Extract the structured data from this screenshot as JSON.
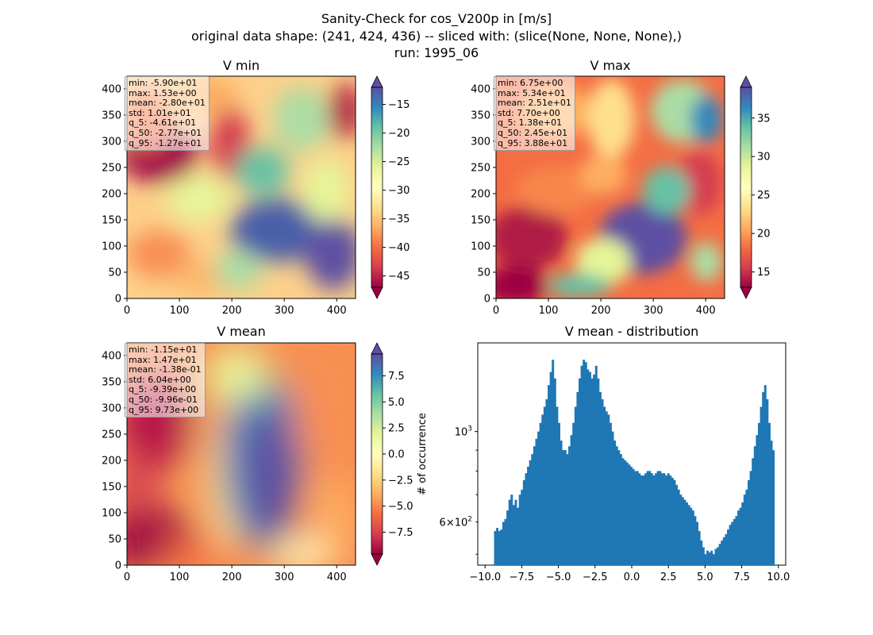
{
  "suptitle": {
    "line1": "Sanity-Check for cos_V200p in [m/s]",
    "line2": "original data shape: (241, 424, 436) -- sliced with: (slice(None, None, None),)",
    "line3": "run: 1995_06"
  },
  "colors": {
    "hist_bar": "#1f77b4",
    "colormap": "Spectral"
  },
  "chart_data": [
    {
      "type": "heatmap",
      "title": "V min",
      "xlim": [
        0,
        436
      ],
      "ylim": [
        0,
        424
      ],
      "xticks": [
        "0",
        "100",
        "200",
        "300",
        "400"
      ],
      "yticks": [
        "0",
        "50",
        "100",
        "150",
        "200",
        "250",
        "300",
        "350",
        "400"
      ],
      "clim": [
        -47,
        -12
      ],
      "colorbar_ticks": [
        "−15",
        "−20",
        "−25",
        "−30",
        "−35",
        "−40",
        "−45"
      ],
      "colorbar_tick_values": [
        -15,
        -20,
        -25,
        -30,
        -35,
        -40,
        -45
      ],
      "colorbar_extend": "both",
      "stats": [
        "min: -5.90e+01",
        "max: 1.53e+00",
        "mean: -2.80e+01",
        "std: 1.01e+01",
        "q_5: -4.61e+01",
        "q_50: -2.77e+01",
        "q_95: -1.27e+01"
      ]
    },
    {
      "type": "heatmap",
      "title": "V max",
      "xlim": [
        0,
        436
      ],
      "ylim": [
        0,
        424
      ],
      "xticks": [
        "0",
        "100",
        "200",
        "300",
        "400"
      ],
      "yticks": [
        "0",
        "50",
        "100",
        "150",
        "200",
        "250",
        "300",
        "350",
        "400"
      ],
      "clim": [
        13,
        39
      ],
      "colorbar_ticks": [
        "35",
        "30",
        "25",
        "20",
        "15"
      ],
      "colorbar_tick_values": [
        35,
        30,
        25,
        20,
        15
      ],
      "colorbar_extend": "both",
      "stats": [
        "min: 6.75e+00",
        "max: 5.34e+01",
        "mean: 2.51e+01",
        "std: 7.70e+00",
        "q_5: 1.38e+01",
        "q_50: 2.45e+01",
        "q_95: 3.88e+01"
      ]
    },
    {
      "type": "heatmap",
      "title": "V mean",
      "xlim": [
        0,
        436
      ],
      "ylim": [
        0,
        424
      ],
      "xticks": [
        "0",
        "100",
        "200",
        "300",
        "400"
      ],
      "yticks": [
        "0",
        "50",
        "100",
        "150",
        "200",
        "250",
        "300",
        "350",
        "400"
      ],
      "clim": [
        -9.6,
        9.6
      ],
      "colorbar_ticks": [
        "7.5",
        "5.0",
        "2.5",
        "0.0",
        "−2.5",
        "−5.0",
        "−7.5"
      ],
      "colorbar_tick_values": [
        7.5,
        5.0,
        2.5,
        0.0,
        -2.5,
        -5.0,
        -7.5
      ],
      "colorbar_extend": "both",
      "stats": [
        "min: -1.15e+01",
        "max: 1.47e+01",
        "mean: -1.38e-01",
        "std: 6.04e+00",
        "q_5: -9.39e+00",
        "q_50: -9.96e-01",
        "q_95: 9.73e+00"
      ]
    },
    {
      "type": "bar",
      "title": "V mean - distribution",
      "ylabel": "# of occurrence",
      "yscale": "log",
      "xlim": [
        -10.5,
        10.5
      ],
      "ylim": [
        470,
        1650
      ],
      "xticks": [
        "−10.0",
        "−7.5",
        "−5.0",
        "−2.5",
        "0.0",
        "2.5",
        "5.0",
        "7.5",
        "10.0"
      ],
      "xtick_values": [
        -10,
        -7.5,
        -5,
        -2.5,
        0,
        2.5,
        5,
        7.5,
        10
      ],
      "yticks_major": [
        {
          "value": 1000,
          "base": "10",
          "exp": "3"
        }
      ],
      "yticks_minor_labeled": [
        {
          "value": 600,
          "mant": "6",
          "base": "10",
          "exp": "2"
        }
      ],
      "bin_range": [
        -9.39,
        9.73
      ],
      "counts": [
        570,
        580,
        570,
        575,
        600,
        610,
        640,
        680,
        700,
        660,
        680,
        650,
        700,
        720,
        760,
        790,
        820,
        850,
        880,
        920,
        960,
        1000,
        1050,
        1100,
        1150,
        1200,
        1300,
        1400,
        1500,
        1350,
        1150,
        1050,
        950,
        900,
        900,
        880,
        920,
        980,
        1050,
        1150,
        1250,
        1350,
        1450,
        1500,
        1480,
        1420,
        1400,
        1350,
        1380,
        1450,
        1350,
        1250,
        1200,
        1150,
        1120,
        1100,
        1050,
        1000,
        950,
        920,
        900,
        880,
        860,
        850,
        840,
        830,
        820,
        810,
        800,
        800,
        790,
        780,
        780,
        790,
        800,
        800,
        790,
        780,
        790,
        800,
        800,
        790,
        790,
        780,
        790,
        780,
        770,
        760,
        740,
        720,
        700,
        690,
        680,
        670,
        660,
        650,
        640,
        620,
        600,
        570,
        540,
        520,
        500,
        510,
        505,
        510,
        500,
        515,
        520,
        530,
        540,
        550,
        560,
        575,
        590,
        600,
        610,
        620,
        640,
        650,
        670,
        700,
        720,
        760,
        800,
        860,
        920,
        980,
        1050,
        1150,
        1250,
        1300,
        1200,
        1050,
        950,
        900
      ]
    }
  ]
}
